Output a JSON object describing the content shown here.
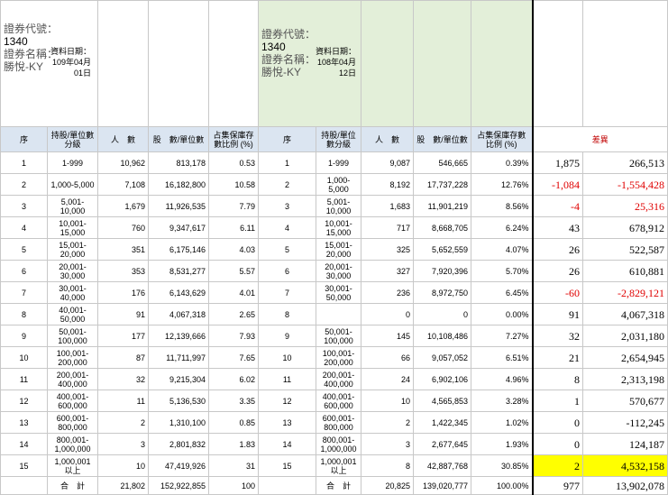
{
  "left": {
    "code_label": "證券代號：",
    "code": "1340",
    "name_label": "證券名稱：",
    "name": "勝悅-KY",
    "date_label": "資料日期：",
    "date_line1": "109年04月",
    "date_line2": "01日"
  },
  "right": {
    "code_label": "證券代號：",
    "code": "1340",
    "name_label": "證券名稱：",
    "name": "勝悅-KY",
    "date_label": "資料日期：",
    "date_line1": "108年04月",
    "date_line2": "12日"
  },
  "headers": {
    "seq": "序",
    "level": "持股/單位數分級",
    "people": "人　數",
    "shares": "股　數/單位數",
    "pct": "占集保庫存數比例 (%)",
    "diff": "差異"
  },
  "rows": [
    {
      "seq": "1",
      "level": "1-999",
      "p1": "10,962",
      "s1": "813,178",
      "r1": "0.53",
      "p2": "9,087",
      "s2": "546,665",
      "r2": "0.39%",
      "dp": "1,875",
      "ds": "266,513",
      "neg": false
    },
    {
      "seq": "2",
      "level": "1,000-5,000",
      "p1": "7,108",
      "s1": "16,182,800",
      "r1": "10.58",
      "p2": "8,192",
      "s2": "17,737,228",
      "r2": "12.76%",
      "dp": "-1,084",
      "ds": "-1,554,428",
      "neg": true
    },
    {
      "seq": "3",
      "level": "5,001-10,000",
      "p1": "1,679",
      "s1": "11,926,535",
      "r1": "7.79",
      "p2": "1,683",
      "s2": "11,901,219",
      "r2": "8.56%",
      "dp": "-4",
      "ds": "25,316",
      "neg": true
    },
    {
      "seq": "4",
      "level": "10,001-15,000",
      "p1": "760",
      "s1": "9,347,617",
      "r1": "6.11",
      "p2": "717",
      "s2": "8,668,705",
      "r2": "6.24%",
      "dp": "43",
      "ds": "678,912",
      "neg": false
    },
    {
      "seq": "5",
      "level": "15,001-20,000",
      "p1": "351",
      "s1": "6,175,146",
      "r1": "4.03",
      "p2": "325",
      "s2": "5,652,559",
      "r2": "4.07%",
      "dp": "26",
      "ds": "522,587",
      "neg": false
    },
    {
      "seq": "6",
      "level": "20,001-30,000",
      "p1": "353",
      "s1": "8,531,277",
      "r1": "5.57",
      "p2": "327",
      "s2": "7,920,396",
      "r2": "5.70%",
      "dp": "26",
      "ds": "610,881",
      "neg": false
    },
    {
      "seq": "7",
      "level": "30,001-40,000",
      "p1": "176",
      "s1": "6,143,629",
      "r1": "4.01",
      "level2": "30,001-50,000",
      "p2": "236",
      "s2": "8,972,750",
      "r2": "6.45%",
      "dp": "-60",
      "ds": "-2,829,121",
      "neg": true
    },
    {
      "seq": "8",
      "level": "40,001-50,000",
      "p1": "91",
      "s1": "4,067,318",
      "r1": "2.65",
      "level2": "",
      "p2": "0",
      "s2": "0",
      "r2": "0.00%",
      "dp": "91",
      "ds": "4,067,318",
      "neg": false
    },
    {
      "seq": "9",
      "level": "50,001-100,000",
      "p1": "177",
      "s1": "12,139,666",
      "r1": "7.93",
      "p2": "145",
      "s2": "10,108,486",
      "r2": "7.27%",
      "dp": "32",
      "ds": "2,031,180",
      "neg": false
    },
    {
      "seq": "10",
      "level": "100,001-200,000",
      "p1": "87",
      "s1": "11,711,997",
      "r1": "7.65",
      "p2": "66",
      "s2": "9,057,052",
      "r2": "6.51%",
      "dp": "21",
      "ds": "2,654,945",
      "neg": false
    },
    {
      "seq": "11",
      "level": "200,001-400,000",
      "p1": "32",
      "s1": "9,215,304",
      "r1": "6.02",
      "p2": "24",
      "s2": "6,902,106",
      "r2": "4.96%",
      "dp": "8",
      "ds": "2,313,198",
      "neg": false
    },
    {
      "seq": "12",
      "level": "400,001-600,000",
      "p1": "11",
      "s1": "5,136,530",
      "r1": "3.35",
      "p2": "10",
      "s2": "4,565,853",
      "r2": "3.28%",
      "dp": "1",
      "ds": "570,677",
      "neg": false
    },
    {
      "seq": "13",
      "level": "600,001-800,000",
      "p1": "2",
      "s1": "1,310,100",
      "r1": "0.85",
      "p2": "2",
      "s2": "1,422,345",
      "r2": "1.02%",
      "dp": "0",
      "ds": "-112,245",
      "neg": false
    },
    {
      "seq": "14",
      "level": "800,001-1,000,000",
      "p1": "3",
      "s1": "2,801,832",
      "r1": "1.83",
      "p2": "3",
      "s2": "2,677,645",
      "r2": "1.93%",
      "dp": "0",
      "ds": "124,187",
      "neg": false
    },
    {
      "seq": "15",
      "level": "1,000,001以上",
      "p1": "10",
      "s1": "47,419,926",
      "r1": "31",
      "p2": "8",
      "s2": "42,887,768",
      "r2": "30.85%",
      "dp": "2",
      "ds": "4,532,158",
      "neg": false,
      "highlight": true
    }
  ],
  "total": {
    "label": "合　計",
    "p1": "21,802",
    "s1": "152,922,855",
    "r1": "100",
    "p2": "20,825",
    "s2": "139,020,777",
    "r2": "100.00%",
    "dp": "977",
    "ds": "13,902,078"
  }
}
